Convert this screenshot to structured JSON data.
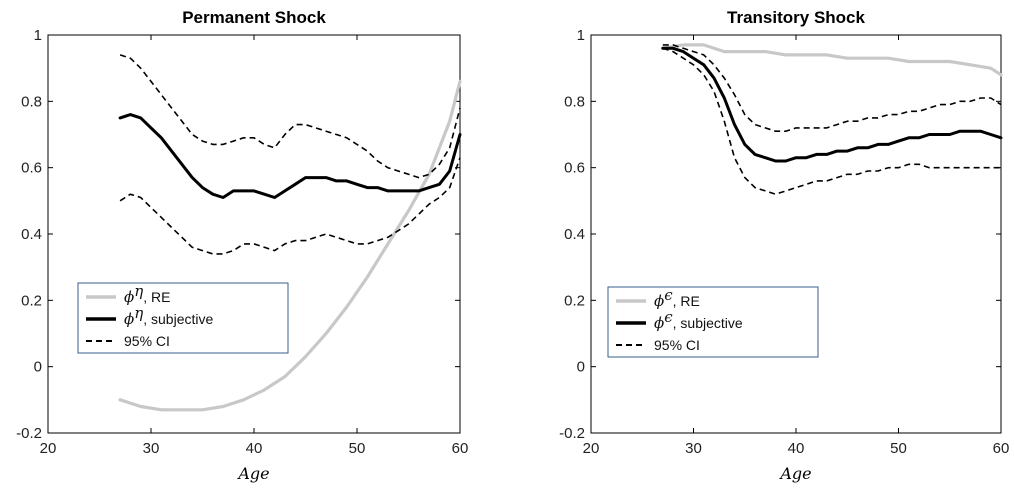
{
  "chart_data": [
    {
      "type": "line",
      "title": "Permanent Shock",
      "xlabel": "Age",
      "ylabel": "",
      "xlim": [
        20,
        60
      ],
      "ylim": [
        -0.2,
        1
      ],
      "xticks": [
        "20",
        "30",
        "40",
        "50",
        "60"
      ],
      "yticks": [
        "-0.2",
        "0",
        "0.2",
        "0.4",
        "0.6",
        "0.8",
        "1"
      ],
      "legend_position": "lower-left",
      "series": [
        {
          "name": "ϕ^η, RE",
          "symbol": "ϕ",
          "sup": "η",
          "suffix": ", RE",
          "style": "solid",
          "color": "#c8c8c8",
          "x": [
            27,
            29,
            31,
            33,
            35,
            37,
            39,
            41,
            43,
            45,
            47,
            49,
            51,
            53,
            55,
            57,
            59,
            60
          ],
          "y": [
            -0.1,
            -0.12,
            -0.13,
            -0.13,
            -0.13,
            -0.12,
            -0.1,
            -0.07,
            -0.03,
            0.03,
            0.1,
            0.18,
            0.27,
            0.37,
            0.47,
            0.58,
            0.74,
            0.86
          ]
        },
        {
          "name": "ϕ^η, subjective",
          "symbol": "ϕ",
          "sup": "η",
          "suffix": ", subjective",
          "style": "solid",
          "color": "#000000",
          "x": [
            27,
            28,
            29,
            30,
            31,
            32,
            33,
            34,
            35,
            36,
            37,
            38,
            39,
            40,
            41,
            42,
            43,
            44,
            45,
            46,
            47,
            48,
            49,
            50,
            51,
            52,
            53,
            54,
            55,
            56,
            57,
            58,
            59,
            60
          ],
          "y": [
            0.75,
            0.76,
            0.75,
            0.72,
            0.69,
            0.65,
            0.61,
            0.57,
            0.54,
            0.52,
            0.51,
            0.53,
            0.53,
            0.53,
            0.52,
            0.51,
            0.53,
            0.55,
            0.57,
            0.57,
            0.57,
            0.56,
            0.56,
            0.55,
            0.54,
            0.54,
            0.53,
            0.53,
            0.53,
            0.53,
            0.54,
            0.55,
            0.59,
            0.7
          ]
        },
        {
          "name": "95% CI",
          "symbol": "",
          "sup": "",
          "suffix": "95% CI",
          "style": "dashed",
          "color": "#000000",
          "x": [
            27,
            28,
            29,
            30,
            31,
            32,
            33,
            34,
            35,
            36,
            37,
            38,
            39,
            40,
            41,
            42,
            43,
            44,
            45,
            46,
            47,
            48,
            49,
            50,
            51,
            52,
            53,
            54,
            55,
            56,
            57,
            58,
            59,
            60
          ],
          "y": [
            0.94,
            0.93,
            0.9,
            0.86,
            0.82,
            0.78,
            0.74,
            0.7,
            0.68,
            0.67,
            0.67,
            0.68,
            0.69,
            0.69,
            0.67,
            0.66,
            0.7,
            0.73,
            0.73,
            0.72,
            0.71,
            0.7,
            0.69,
            0.67,
            0.65,
            0.62,
            0.6,
            0.59,
            0.58,
            0.57,
            0.58,
            0.61,
            0.66,
            0.78
          ]
        },
        {
          "name": "",
          "style": "dashed",
          "color": "#000000",
          "x": [
            27,
            28,
            29,
            30,
            31,
            32,
            33,
            34,
            35,
            36,
            37,
            38,
            39,
            40,
            41,
            42,
            43,
            44,
            45,
            46,
            47,
            48,
            49,
            50,
            51,
            52,
            53,
            54,
            55,
            56,
            57,
            58,
            59,
            60
          ],
          "y": [
            0.5,
            0.52,
            0.51,
            0.48,
            0.45,
            0.42,
            0.39,
            0.36,
            0.35,
            0.34,
            0.34,
            0.35,
            0.37,
            0.37,
            0.36,
            0.35,
            0.37,
            0.38,
            0.38,
            0.39,
            0.4,
            0.39,
            0.38,
            0.37,
            0.37,
            0.38,
            0.39,
            0.41,
            0.43,
            0.46,
            0.49,
            0.51,
            0.54,
            0.63
          ]
        }
      ]
    },
    {
      "type": "line",
      "title": "Transitory Shock",
      "xlabel": "Age",
      "ylabel": "",
      "xlim": [
        20,
        60
      ],
      "ylim": [
        -0.2,
        1
      ],
      "xticks": [
        "20",
        "30",
        "40",
        "50",
        "60"
      ],
      "yticks": [
        "-0.2",
        "0",
        "0.2",
        "0.4",
        "0.6",
        "0.8",
        "1"
      ],
      "legend_position": "lower-left",
      "series": [
        {
          "name": "ϕ^ϵ, RE",
          "symbol": "ϕ",
          "sup": "ϵ",
          "suffix": ", RE",
          "style": "solid",
          "color": "#c8c8c8",
          "x": [
            27,
            29,
            31,
            33,
            35,
            37,
            39,
            41,
            43,
            45,
            47,
            49,
            51,
            53,
            55,
            57,
            59,
            60
          ],
          "y": [
            0.96,
            0.97,
            0.97,
            0.95,
            0.95,
            0.95,
            0.94,
            0.94,
            0.94,
            0.93,
            0.93,
            0.93,
            0.92,
            0.92,
            0.92,
            0.91,
            0.9,
            0.88
          ]
        },
        {
          "name": "ϕ^ϵ, subjective",
          "symbol": "ϕ",
          "sup": "ϵ",
          "suffix": ", subjective",
          "style": "solid",
          "color": "#000000",
          "x": [
            27,
            28,
            29,
            30,
            31,
            32,
            33,
            34,
            35,
            36,
            37,
            38,
            39,
            40,
            41,
            42,
            43,
            44,
            45,
            46,
            47,
            48,
            49,
            50,
            51,
            52,
            53,
            54,
            55,
            56,
            57,
            58,
            59,
            60
          ],
          "y": [
            0.96,
            0.96,
            0.95,
            0.93,
            0.91,
            0.87,
            0.81,
            0.73,
            0.67,
            0.64,
            0.63,
            0.62,
            0.62,
            0.63,
            0.63,
            0.64,
            0.64,
            0.65,
            0.65,
            0.66,
            0.66,
            0.67,
            0.67,
            0.68,
            0.69,
            0.69,
            0.7,
            0.7,
            0.7,
            0.71,
            0.71,
            0.71,
            0.7,
            0.69
          ]
        },
        {
          "name": "95% CI",
          "symbol": "",
          "sup": "",
          "suffix": "95% CI",
          "style": "dashed",
          "color": "#000000",
          "x": [
            27,
            28,
            29,
            30,
            31,
            32,
            33,
            34,
            35,
            36,
            37,
            38,
            39,
            40,
            41,
            42,
            43,
            44,
            45,
            46,
            47,
            48,
            49,
            50,
            51,
            52,
            53,
            54,
            55,
            56,
            57,
            58,
            59,
            60
          ],
          "y": [
            0.97,
            0.97,
            0.96,
            0.95,
            0.94,
            0.91,
            0.87,
            0.82,
            0.76,
            0.73,
            0.72,
            0.71,
            0.71,
            0.72,
            0.72,
            0.72,
            0.72,
            0.73,
            0.74,
            0.74,
            0.75,
            0.75,
            0.76,
            0.76,
            0.77,
            0.77,
            0.78,
            0.79,
            0.79,
            0.8,
            0.8,
            0.81,
            0.81,
            0.79
          ]
        },
        {
          "name": "",
          "style": "dashed",
          "color": "#000000",
          "x": [
            27,
            28,
            29,
            30,
            31,
            32,
            33,
            34,
            35,
            36,
            37,
            38,
            39,
            40,
            41,
            42,
            43,
            44,
            45,
            46,
            47,
            48,
            49,
            50,
            51,
            52,
            53,
            54,
            55,
            56,
            57,
            58,
            59,
            60
          ],
          "y": [
            0.96,
            0.95,
            0.93,
            0.91,
            0.88,
            0.83,
            0.74,
            0.63,
            0.57,
            0.54,
            0.53,
            0.52,
            0.53,
            0.54,
            0.55,
            0.56,
            0.56,
            0.57,
            0.58,
            0.58,
            0.59,
            0.59,
            0.6,
            0.6,
            0.61,
            0.61,
            0.6,
            0.6,
            0.6,
            0.6,
            0.6,
            0.6,
            0.6,
            0.6
          ]
        }
      ]
    }
  ]
}
